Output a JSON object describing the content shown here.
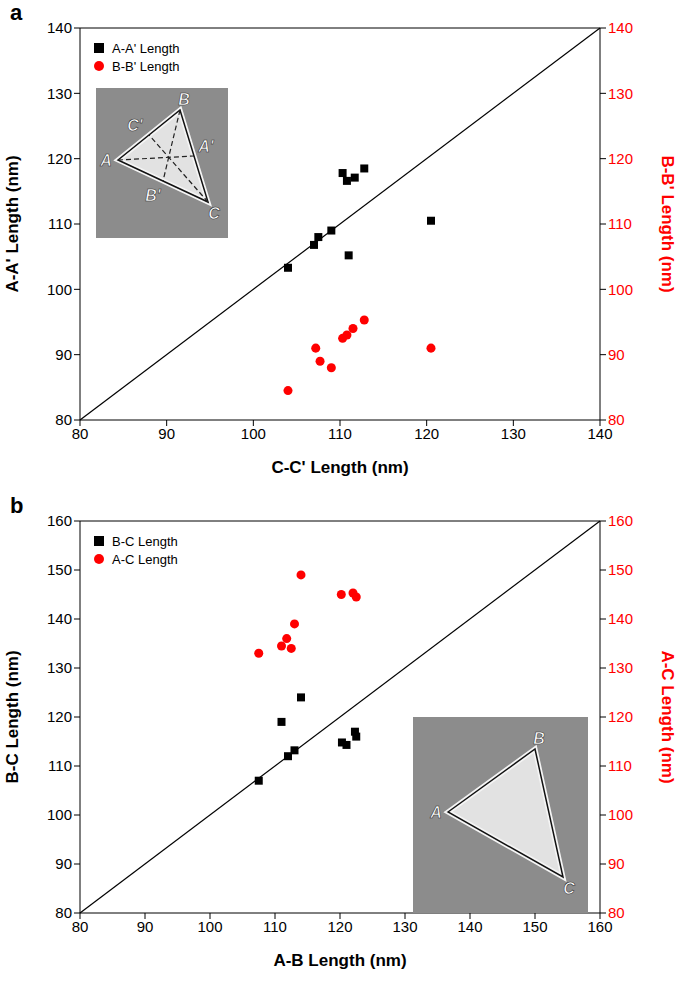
{
  "chart_data": [
    {
      "type": "scatter",
      "title": "a",
      "xlabel": "C-C' Length (nm)",
      "ylabel": "A-A' Length (nm)",
      "y2label": "B-B' Length (nm)",
      "xlim": [
        80,
        140
      ],
      "xticks": [
        80,
        90,
        100,
        110,
        120,
        130,
        140
      ],
      "ylim": [
        80,
        140
      ],
      "yticks": [
        80,
        90,
        100,
        110,
        120,
        130,
        140
      ],
      "y2lim": [
        80,
        140
      ],
      "y2ticks": [
        80,
        90,
        100,
        110,
        120,
        130,
        140
      ],
      "legend": "upper left",
      "annotations": [
        "A",
        "B",
        "C",
        "A'",
        "B'",
        "C'"
      ],
      "series": [
        {
          "name": "A-A' Length",
          "color": "#000000",
          "marker": "square",
          "x": [
            104,
            107,
            107.5,
            109,
            110.3,
            110.8,
            111,
            111.7,
            112.8,
            120.5
          ],
          "values": [
            103.3,
            106.8,
            108,
            109,
            117.8,
            116.6,
            105.2,
            117.1,
            118.5,
            110.5
          ]
        },
        {
          "name": "B-B' Length",
          "color": "#ff0000",
          "marker": "circle",
          "axis": "y2",
          "x": [
            104,
            107.2,
            107.7,
            109,
            110.3,
            110.8,
            111.5,
            112.8,
            120.5
          ],
          "values": [
            84.5,
            91,
            89,
            88,
            92.5,
            93,
            94,
            95.3,
            91
          ]
        }
      ]
    },
    {
      "type": "scatter",
      "title": "b",
      "xlabel": "A-B  Length (nm)",
      "ylabel": "B-C Length (nm)",
      "y2label": "A-C  Length (nm)",
      "xlim": [
        80,
        160
      ],
      "xticks": [
        80,
        90,
        100,
        110,
        120,
        130,
        140,
        150,
        160
      ],
      "ylim": [
        80,
        160
      ],
      "yticks": [
        80,
        90,
        100,
        110,
        120,
        130,
        140,
        150,
        160
      ],
      "y2lim": [
        80,
        160
      ],
      "y2ticks": [
        80,
        90,
        100,
        110,
        120,
        130,
        140,
        150,
        160
      ],
      "legend": "upper left",
      "annotations": [
        "A",
        "B",
        "C"
      ],
      "series": [
        {
          "name": "B-C Length",
          "color": "#000000",
          "marker": "square",
          "x": [
            107.5,
            111,
            112,
            113,
            114,
            120.3,
            121,
            122.3,
            122.5
          ],
          "values": [
            107,
            119,
            112,
            113.2,
            124,
            114.8,
            114.3,
            117,
            116
          ]
        },
        {
          "name": "A-C Length",
          "color": "#ff0000",
          "marker": "circle",
          "axis": "y2",
          "x": [
            107.5,
            111,
            111.8,
            112.5,
            113,
            114,
            120.2,
            122,
            122.5
          ],
          "values": [
            133,
            134.5,
            136,
            134,
            139,
            149,
            145,
            145.3,
            144.5
          ]
        }
      ]
    }
  ]
}
